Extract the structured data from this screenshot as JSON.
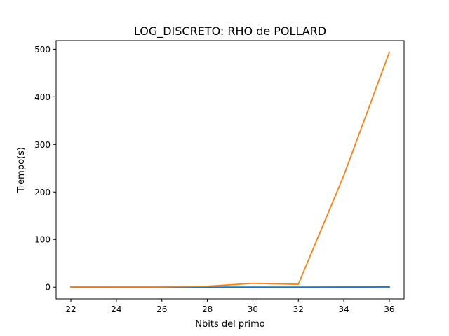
{
  "chart_data": {
    "type": "line",
    "title": "LOG_DISCRETO: RHO de POLLARD",
    "xlabel": "Nbits del primo",
    "ylabel": "Tiempo(s)",
    "xlim": [
      21.35,
      36.65
    ],
    "ylim": [
      -24.7,
      518.2
    ],
    "xticks": [
      22,
      24,
      26,
      28,
      30,
      32,
      34,
      36
    ],
    "yticks": [
      0,
      100,
      200,
      300,
      400,
      500
    ],
    "x": [
      22,
      24,
      26,
      28,
      30,
      32,
      34,
      36
    ],
    "series": [
      {
        "color": "#1f77b4",
        "values": [
          0.0,
          0.0,
          0.0,
          0.1,
          0.1,
          0.1,
          0.2,
          0.4
        ]
      },
      {
        "color": "#ff7f0e",
        "values": [
          0.3,
          0.4,
          0.4,
          2.0,
          8.0,
          6.0,
          235.0,
          493.5
        ]
      }
    ],
    "grid": false
  }
}
